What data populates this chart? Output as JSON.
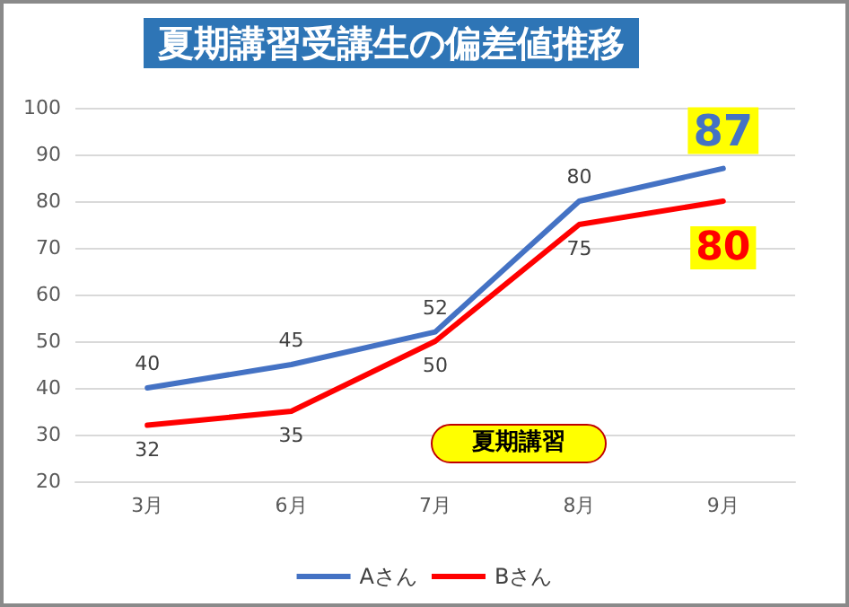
{
  "chart_data": {
    "type": "line",
    "title": "夏期講習受講生の偏差値推移",
    "categories": [
      "3月",
      "6月",
      "7月",
      "8月",
      "9月"
    ],
    "series": [
      {
        "name": "Aさん",
        "color": "#4472c4",
        "values": [
          40,
          45,
          52,
          80,
          87
        ]
      },
      {
        "name": "Bさん",
        "color": "#ff0000",
        "values": [
          32,
          35,
          50,
          75,
          80
        ]
      }
    ],
    "ylim": [
      20,
      100
    ],
    "yticks": [
      20,
      30,
      40,
      50,
      60,
      70,
      80,
      90,
      100
    ],
    "grid": "y",
    "legend": "bottom",
    "marker": "none",
    "line_style": "solid",
    "data_labels": true,
    "annotations": [
      "夏期講習"
    ]
  }
}
